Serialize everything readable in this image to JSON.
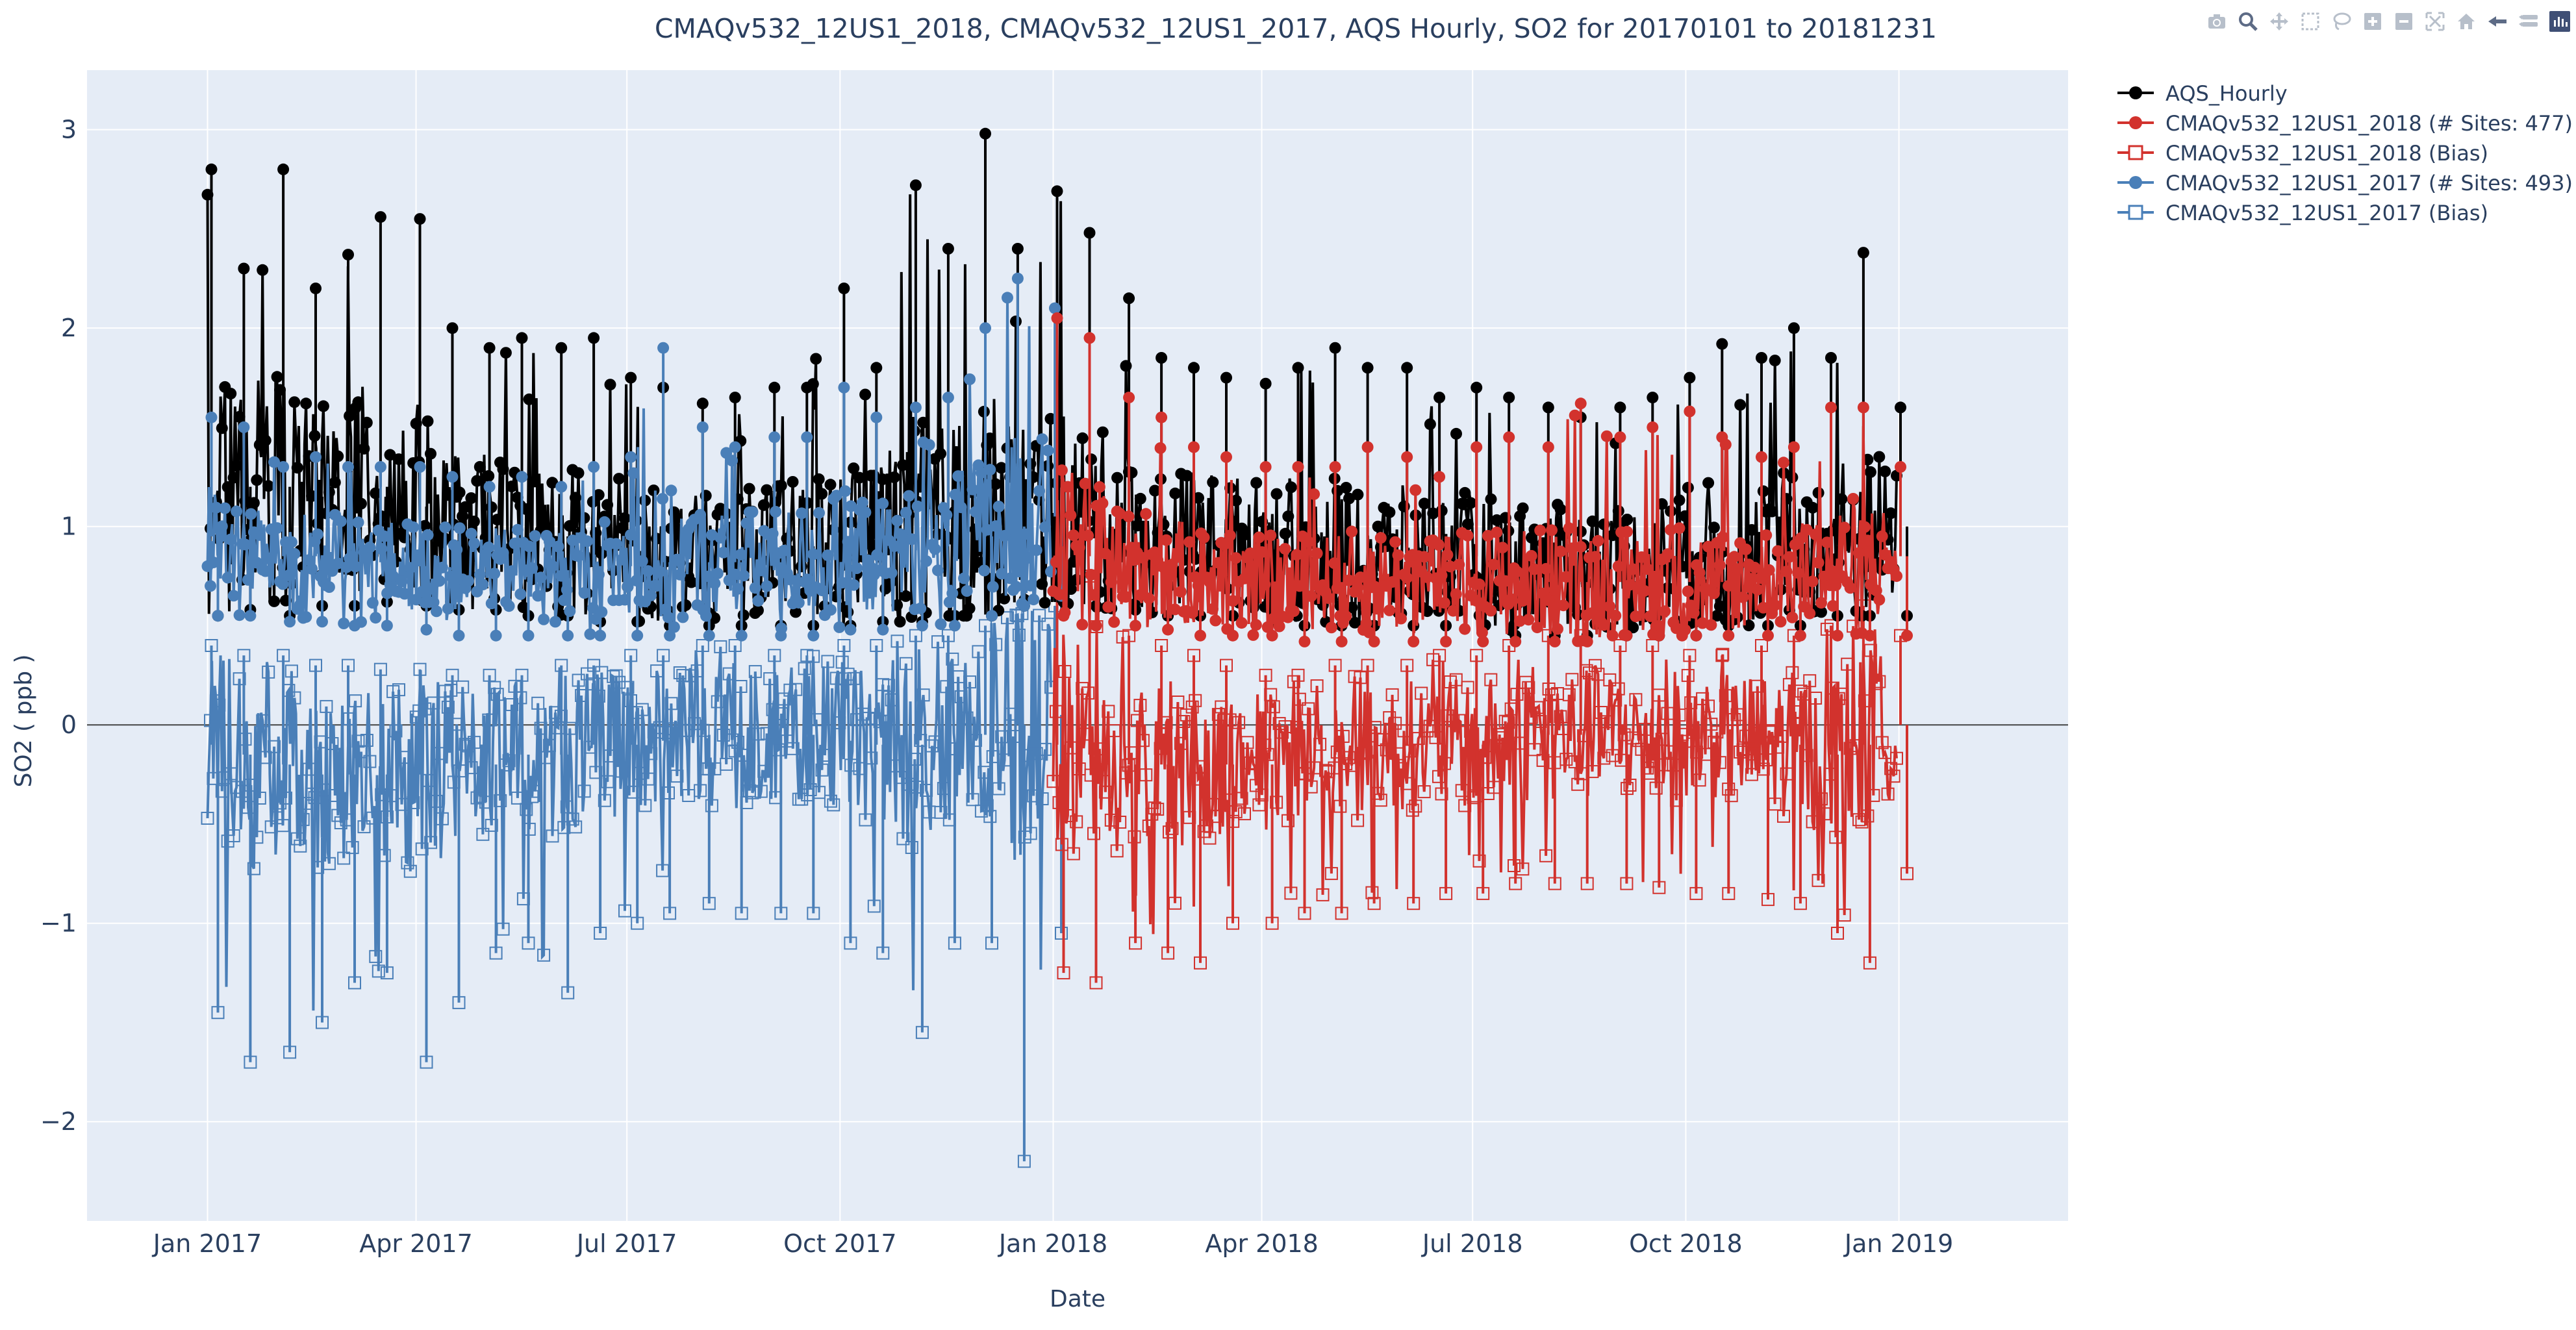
{
  "chart_data": {
    "type": "line",
    "title": "CMAQv532_12US1_2018, CMAQv532_12US1_2017, AQS Hourly, SO2 for 20170101 to 20181231",
    "xlabel": "Date",
    "ylabel": "SO2  ( ppb )",
    "x_axis": {
      "type": "date",
      "range": [
        "2016-11-10",
        "2019-03-15"
      ],
      "tick_labels": [
        "Jan 2017",
        "Apr 2017",
        "Jul 2017",
        "Oct 2017",
        "Jan 2018",
        "Apr 2018",
        "Jul 2018",
        "Oct 2018",
        "Jan 2019"
      ],
      "tick_values": [
        "2017-01-01",
        "2017-04-01",
        "2017-07-01",
        "2017-10-01",
        "2018-01-01",
        "2018-04-01",
        "2018-07-01",
        "2018-10-01",
        "2019-01-01"
      ]
    },
    "y_axis": {
      "range": [
        -2.5,
        3.3
      ],
      "ticks": [
        -2,
        -1,
        0,
        1,
        2,
        3
      ],
      "tick_labels": [
        "−2",
        "−1",
        "0",
        "1",
        "2",
        "3"
      ],
      "zeroline": true
    },
    "grid": true,
    "legend_placement": "top-right outside plot",
    "background": "#e5ecf6",
    "series": [
      {
        "name": "AQS_Hourly",
        "color": "#000000",
        "marker": "filled circle",
        "x": [
          "2017-01-01",
          "2017-01-15",
          "2017-02-01",
          "2017-02-15",
          "2017-03-01",
          "2017-03-15",
          "2017-04-01",
          "2017-04-15",
          "2017-05-01",
          "2017-05-15",
          "2017-06-01",
          "2017-06-15",
          "2017-07-01",
          "2017-07-15",
          "2017-08-01",
          "2017-08-15",
          "2017-09-01",
          "2017-09-15",
          "2017-10-01",
          "2017-10-15",
          "2017-11-01",
          "2017-11-15",
          "2017-12-01",
          "2017-12-15",
          "2018-01-01",
          "2018-01-15",
          "2018-02-01",
          "2018-02-15",
          "2018-03-01",
          "2018-03-15",
          "2018-04-01",
          "2018-04-15",
          "2018-05-01",
          "2018-05-15",
          "2018-06-01",
          "2018-06-15",
          "2018-07-01",
          "2018-07-15",
          "2018-08-01",
          "2018-08-15",
          "2018-09-01",
          "2018-09-15",
          "2018-10-01",
          "2018-10-15",
          "2018-11-01",
          "2018-11-15",
          "2018-12-01",
          "2018-12-15",
          "2018-12-31"
        ],
        "low": [
          0.55,
          0.58,
          0.55,
          0.6,
          0.6,
          0.62,
          0.6,
          0.58,
          0.58,
          0.55,
          0.55,
          0.52,
          0.52,
          0.5,
          0.5,
          0.5,
          0.5,
          0.5,
          0.5,
          0.52,
          0.52,
          0.55,
          0.55,
          0.6,
          0.62,
          0.6,
          0.58,
          0.55,
          0.55,
          0.55,
          0.52,
          0.5,
          0.5,
          0.5,
          0.5,
          0.5,
          0.5,
          0.45,
          0.45,
          0.45,
          0.45,
          0.45,
          0.45,
          0.5,
          0.5,
          0.5,
          0.55,
          0.55,
          0.55
        ],
        "high": [
          2.8,
          2.3,
          2.8,
          2.2,
          2.37,
          2.56,
          2.55,
          2.0,
          1.9,
          1.95,
          1.9,
          1.95,
          1.75,
          1.7,
          1.62,
          1.65,
          1.7,
          1.7,
          2.2,
          1.8,
          2.72,
          2.4,
          2.98,
          2.4,
          2.69,
          2.48,
          2.15,
          1.85,
          1.8,
          1.75,
          1.72,
          1.8,
          1.9,
          1.8,
          1.8,
          1.65,
          1.7,
          1.65,
          1.6,
          1.55,
          1.6,
          1.65,
          1.75,
          1.92,
          1.85,
          2.0,
          1.85,
          2.38,
          1.6
        ],
        "mean": [
          1.15,
          1.2,
          1.2,
          1.15,
          1.2,
          1.2,
          1.1,
          1.0,
          1.0,
          0.95,
          0.95,
          0.9,
          0.9,
          0.85,
          0.85,
          0.85,
          0.9,
          0.9,
          0.95,
          0.95,
          1.0,
          1.0,
          1.05,
          1.05,
          1.05,
          1.0,
          1.0,
          0.95,
          0.95,
          0.95,
          0.9,
          0.9,
          0.9,
          0.85,
          0.85,
          0.85,
          0.85,
          0.8,
          0.8,
          0.8,
          0.8,
          0.8,
          0.85,
          0.85,
          0.85,
          0.9,
          0.9,
          0.95,
          1.0
        ]
      },
      {
        "name": "CMAQv532_12US1_2018 (# Sites: 477)",
        "color": "#d2322d",
        "marker": "filled circle",
        "x": [
          "2018-01-01",
          "2018-01-15",
          "2018-02-01",
          "2018-02-15",
          "2018-03-01",
          "2018-03-15",
          "2018-04-01",
          "2018-04-15",
          "2018-05-01",
          "2018-05-15",
          "2018-06-01",
          "2018-06-15",
          "2018-07-01",
          "2018-07-15",
          "2018-08-01",
          "2018-08-15",
          "2018-09-01",
          "2018-09-15",
          "2018-10-01",
          "2018-10-15",
          "2018-11-01",
          "2018-11-15",
          "2018-12-01",
          "2018-12-15",
          "2018-12-31"
        ],
        "low": [
          0.55,
          0.5,
          0.5,
          0.48,
          0.45,
          0.45,
          0.45,
          0.42,
          0.42,
          0.42,
          0.42,
          0.42,
          0.42,
          0.42,
          0.42,
          0.42,
          0.45,
          0.45,
          0.45,
          0.45,
          0.45,
          0.45,
          0.45,
          0.45,
          0.45
        ],
        "high": [
          2.05,
          1.95,
          1.65,
          1.55,
          1.4,
          1.35,
          1.3,
          1.3,
          1.3,
          1.4,
          1.35,
          1.25,
          1.4,
          1.45,
          1.4,
          1.62,
          1.45,
          1.5,
          1.58,
          1.45,
          1.35,
          1.4,
          1.6,
          1.6,
          1.3
        ],
        "mean": [
          0.9,
          0.85,
          0.8,
          0.78,
          0.75,
          0.75,
          0.72,
          0.72,
          0.72,
          0.72,
          0.72,
          0.72,
          0.72,
          0.72,
          0.72,
          0.72,
          0.72,
          0.72,
          0.72,
          0.72,
          0.75,
          0.75,
          0.78,
          0.85,
          0.85
        ]
      },
      {
        "name": "CMAQv532_12US1_2018  (Bias)",
        "color": "#d2322d",
        "marker": "open square",
        "x": [
          "2018-01-01",
          "2018-01-15",
          "2018-02-01",
          "2018-02-15",
          "2018-03-01",
          "2018-03-15",
          "2018-04-01",
          "2018-04-15",
          "2018-05-01",
          "2018-05-15",
          "2018-06-01",
          "2018-06-15",
          "2018-07-01",
          "2018-07-15",
          "2018-08-01",
          "2018-08-15",
          "2018-09-01",
          "2018-09-15",
          "2018-10-01",
          "2018-10-15",
          "2018-11-01",
          "2018-11-15",
          "2018-12-01",
          "2018-12-15",
          "2018-12-31"
        ],
        "low": [
          -1.25,
          -1.3,
          -1.1,
          -1.15,
          -1.2,
          -1.0,
          -1.0,
          -0.95,
          -0.95,
          -0.9,
          -0.9,
          -0.85,
          -0.85,
          -0.8,
          -0.8,
          -0.8,
          -0.8,
          -0.82,
          -0.85,
          -0.85,
          -0.88,
          -0.9,
          -1.05,
          -1.2,
          -0.75
        ],
        "high": [
          0.85,
          0.75,
          0.45,
          0.4,
          0.35,
          0.3,
          0.25,
          0.25,
          0.3,
          0.3,
          0.3,
          0.35,
          0.35,
          0.4,
          0.45,
          0.45,
          0.4,
          0.4,
          0.35,
          0.35,
          0.4,
          0.45,
          0.5,
          0.6,
          0.45
        ],
        "mean": [
          -0.1,
          -0.15,
          -0.2,
          -0.2,
          -0.2,
          -0.2,
          -0.2,
          -0.15,
          -0.15,
          -0.15,
          -0.1,
          -0.1,
          -0.1,
          -0.08,
          -0.05,
          -0.05,
          -0.05,
          -0.05,
          -0.05,
          -0.05,
          -0.1,
          -0.1,
          -0.15,
          -0.1,
          0.0
        ]
      },
      {
        "name": "CMAQv532_12US1_2017 (# Sites: 493)",
        "color": "#4a7fb8",
        "marker": "filled circle",
        "x": [
          "2017-01-01",
          "2017-01-15",
          "2017-02-01",
          "2017-02-15",
          "2017-03-01",
          "2017-03-15",
          "2017-04-01",
          "2017-04-15",
          "2017-05-01",
          "2017-05-15",
          "2017-06-01",
          "2017-06-15",
          "2017-07-01",
          "2017-07-15",
          "2017-08-01",
          "2017-08-15",
          "2017-09-01",
          "2017-09-15",
          "2017-10-01",
          "2017-10-15",
          "2017-11-01",
          "2017-11-15",
          "2017-12-01",
          "2017-12-15",
          "2017-12-31"
        ],
        "low": [
          0.55,
          0.55,
          0.52,
          0.52,
          0.5,
          0.5,
          0.48,
          0.45,
          0.45,
          0.45,
          0.45,
          0.45,
          0.45,
          0.45,
          0.45,
          0.45,
          0.45,
          0.45,
          0.48,
          0.48,
          0.5,
          0.5,
          0.55,
          0.6,
          0.65
        ],
        "high": [
          1.55,
          1.5,
          1.3,
          1.35,
          1.3,
          1.3,
          1.3,
          1.25,
          1.2,
          1.25,
          1.2,
          1.3,
          1.35,
          1.9,
          1.5,
          1.4,
          1.45,
          1.45,
          1.7,
          1.55,
          1.6,
          1.65,
          2.0,
          2.25,
          2.1
        ],
        "mean": [
          0.95,
          0.9,
          0.85,
          0.85,
          0.85,
          0.82,
          0.8,
          0.78,
          0.78,
          0.78,
          0.78,
          0.8,
          0.8,
          0.82,
          0.82,
          0.82,
          0.82,
          0.82,
          0.85,
          0.85,
          0.88,
          0.9,
          0.95,
          1.0,
          1.05
        ]
      },
      {
        "name": "CMAQv532_12US1_2017  (Bias)",
        "color": "#4a7fb8",
        "marker": "open square",
        "x": [
          "2017-01-01",
          "2017-01-15",
          "2017-02-01",
          "2017-02-15",
          "2017-03-01",
          "2017-03-15",
          "2017-04-01",
          "2017-04-15",
          "2017-05-01",
          "2017-05-15",
          "2017-06-01",
          "2017-06-15",
          "2017-07-01",
          "2017-07-15",
          "2017-08-01",
          "2017-08-15",
          "2017-09-01",
          "2017-09-15",
          "2017-10-01",
          "2017-10-15",
          "2017-11-01",
          "2017-11-15",
          "2017-12-01",
          "2017-12-15",
          "2017-12-31"
        ],
        "low": [
          -1.45,
          -1.7,
          -1.65,
          -1.5,
          -1.3,
          -1.25,
          -1.7,
          -1.4,
          -1.15,
          -1.1,
          -1.35,
          -1.05,
          -1.0,
          -0.95,
          -0.9,
          -0.95,
          -0.95,
          -0.95,
          -1.1,
          -1.15,
          -1.55,
          -1.1,
          -1.1,
          -2.2,
          -1.05
        ],
        "high": [
          0.4,
          0.35,
          0.35,
          0.3,
          0.3,
          0.28,
          0.28,
          0.25,
          0.25,
          0.25,
          0.3,
          0.3,
          0.35,
          0.35,
          0.4,
          0.4,
          0.35,
          0.35,
          0.4,
          0.4,
          0.45,
          0.45,
          0.5,
          0.55,
          0.6
        ],
        "mean": [
          -0.1,
          -0.15,
          -0.2,
          -0.25,
          -0.25,
          -0.25,
          -0.25,
          -0.2,
          -0.2,
          -0.15,
          -0.15,
          -0.1,
          -0.1,
          -0.08,
          -0.05,
          -0.05,
          -0.05,
          -0.05,
          -0.08,
          -0.1,
          -0.1,
          -0.1,
          -0.05,
          0.0,
          0.05
        ]
      }
    ]
  },
  "modebar": {
    "icons": [
      "camera-icon",
      "zoom-icon",
      "pan-icon",
      "box-select-icon",
      "lasso-select-icon",
      "zoom-in-icon",
      "zoom-out-icon",
      "autoscale-icon",
      "reset-axes-icon",
      "spike-lines-icon",
      "compare-hover-icon",
      "plotly-logo-icon"
    ]
  }
}
